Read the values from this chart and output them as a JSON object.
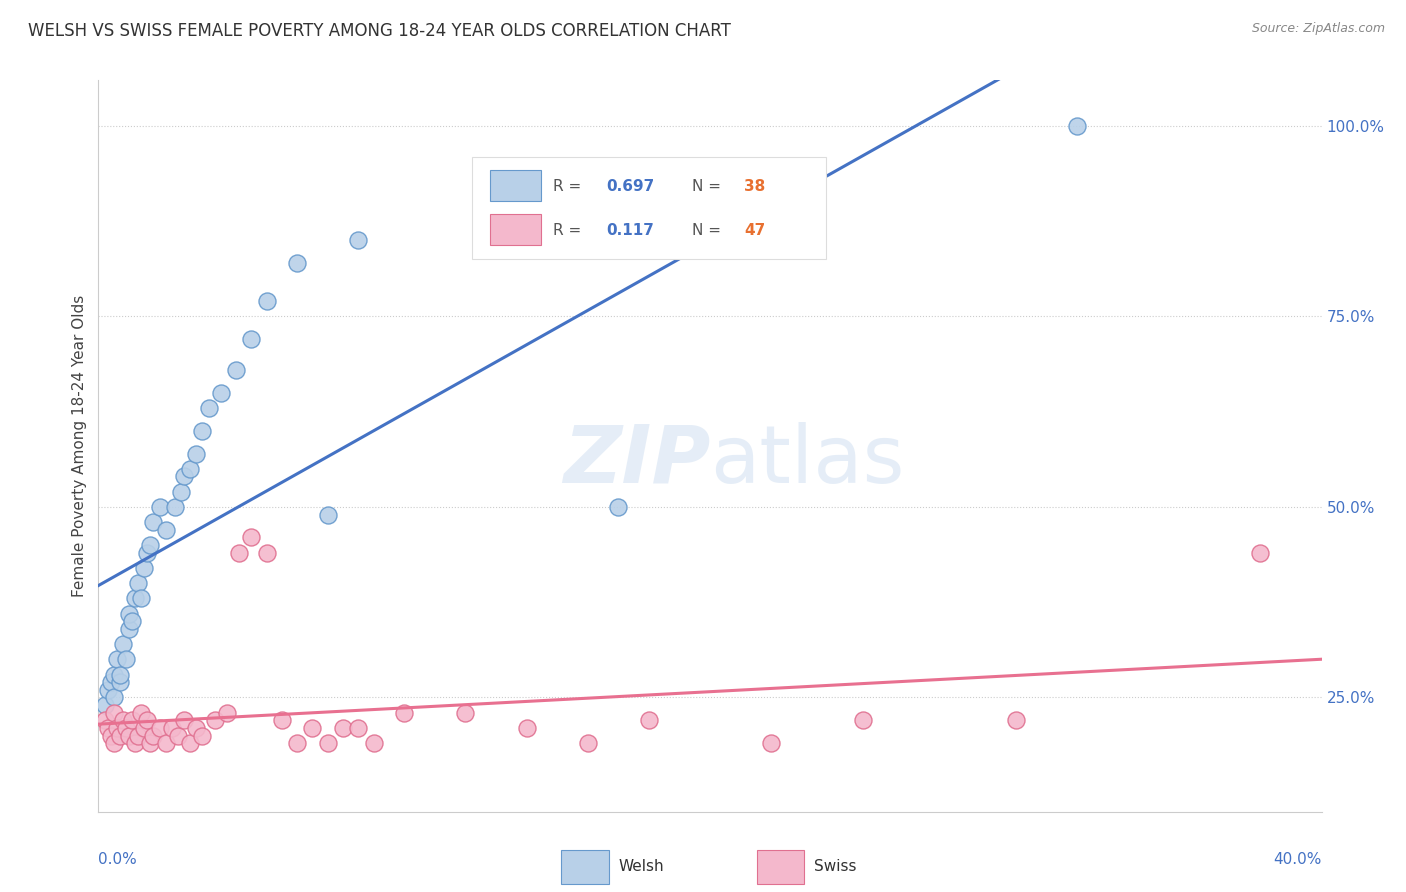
{
  "title": "WELSH VS SWISS FEMALE POVERTY AMONG 18-24 YEAR OLDS CORRELATION CHART",
  "source": "Source: ZipAtlas.com",
  "ylabel": "Female Poverty Among 18-24 Year Olds",
  "welsh_R": 0.697,
  "welsh_N": 38,
  "swiss_R": 0.117,
  "swiss_N": 47,
  "welsh_color": "#b8d0e8",
  "welsh_edge_color": "#6699cc",
  "swiss_color": "#f4b8cc",
  "swiss_edge_color": "#e07090",
  "blue_line_color": "#4472c4",
  "pink_line_color": "#e87090",
  "background_color": "#ffffff",
  "watermark_text": "ZIPatlas",
  "welsh_x": [
    0.002,
    0.003,
    0.004,
    0.005,
    0.005,
    0.006,
    0.007,
    0.007,
    0.008,
    0.009,
    0.01,
    0.01,
    0.011,
    0.012,
    0.013,
    0.014,
    0.015,
    0.016,
    0.017,
    0.018,
    0.02,
    0.022,
    0.025,
    0.027,
    0.028,
    0.03,
    0.032,
    0.034,
    0.036,
    0.04,
    0.045,
    0.05,
    0.055,
    0.065,
    0.075,
    0.085,
    0.17,
    0.32
  ],
  "welsh_y": [
    0.24,
    0.26,
    0.27,
    0.25,
    0.28,
    0.3,
    0.27,
    0.28,
    0.32,
    0.3,
    0.34,
    0.36,
    0.35,
    0.38,
    0.4,
    0.38,
    0.42,
    0.44,
    0.45,
    0.48,
    0.5,
    0.47,
    0.5,
    0.52,
    0.54,
    0.55,
    0.57,
    0.6,
    0.63,
    0.65,
    0.68,
    0.72,
    0.77,
    0.82,
    0.49,
    0.85,
    0.5,
    1.0
  ],
  "swiss_x": [
    0.002,
    0.003,
    0.004,
    0.005,
    0.005,
    0.006,
    0.007,
    0.008,
    0.009,
    0.01,
    0.011,
    0.012,
    0.013,
    0.014,
    0.015,
    0.016,
    0.017,
    0.018,
    0.02,
    0.022,
    0.024,
    0.026,
    0.028,
    0.03,
    0.032,
    0.034,
    0.038,
    0.042,
    0.046,
    0.05,
    0.055,
    0.06,
    0.065,
    0.07,
    0.075,
    0.08,
    0.085,
    0.09,
    0.1,
    0.12,
    0.14,
    0.16,
    0.18,
    0.22,
    0.25,
    0.3,
    0.38
  ],
  "swiss_y": [
    0.22,
    0.21,
    0.2,
    0.23,
    0.19,
    0.21,
    0.2,
    0.22,
    0.21,
    0.2,
    0.22,
    0.19,
    0.2,
    0.23,
    0.21,
    0.22,
    0.19,
    0.2,
    0.21,
    0.19,
    0.21,
    0.2,
    0.22,
    0.19,
    0.21,
    0.2,
    0.22,
    0.23,
    0.44,
    0.46,
    0.44,
    0.22,
    0.19,
    0.21,
    0.19,
    0.21,
    0.21,
    0.19,
    0.23,
    0.23,
    0.21,
    0.19,
    0.22,
    0.19,
    0.22,
    0.22,
    0.44
  ],
  "xlim": [
    0.0,
    0.4
  ],
  "ylim": [
    0.1,
    1.06
  ],
  "right_yticks": [
    0.25,
    0.5,
    0.75,
    1.0
  ],
  "right_yticklabels": [
    "25.0%",
    "50.0%",
    "75.0%",
    "100.0%"
  ]
}
